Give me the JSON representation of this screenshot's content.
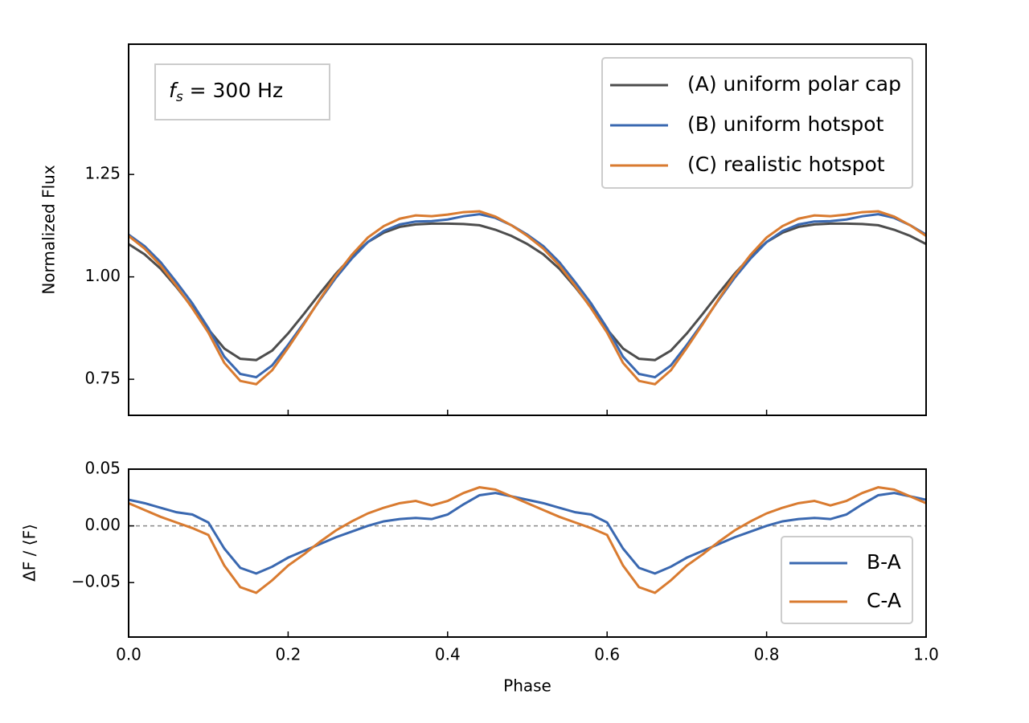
{
  "chart_data": [
    {
      "type": "line",
      "ylabel": "Normalized Flux",
      "annotation": {
        "symbol": "f",
        "subscript": "s",
        "text": " = 300 Hz"
      },
      "x": [
        0,
        0.02,
        0.04,
        0.06,
        0.08,
        0.1,
        0.12,
        0.14,
        0.16,
        0.18,
        0.2,
        0.22,
        0.24,
        0.26,
        0.28,
        0.3,
        0.32,
        0.34,
        0.36,
        0.38,
        0.4,
        0.42,
        0.44,
        0.46,
        0.48,
        0.5,
        0.52,
        0.54,
        0.56,
        0.58,
        0.6,
        0.62,
        0.64,
        0.66,
        0.68,
        0.7,
        0.72,
        0.74,
        0.76,
        0.78,
        0.8,
        0.82,
        0.84,
        0.86,
        0.88,
        0.9,
        0.92,
        0.94,
        0.96,
        0.98,
        1.0
      ],
      "xlim": [
        0,
        1
      ],
      "ylim": [
        0.662,
        1.568
      ],
      "yticks": [
        0.75,
        {
          "value": 1.0,
          "label": "1.00"
        },
        1.25
      ],
      "legend": "upper right",
      "series": [
        {
          "name": "(A) uniform polar cap",
          "color": "#4d4d4d",
          "values": [
            1.08,
            1.055,
            1.02,
            0.975,
            0.925,
            0.872,
            0.825,
            0.8,
            0.797,
            0.82,
            0.862,
            0.91,
            0.96,
            1.008,
            1.05,
            1.085,
            1.108,
            1.122,
            1.128,
            1.13,
            1.13,
            1.129,
            1.126,
            1.115,
            1.1,
            1.08,
            1.055,
            1.02,
            0.975,
            0.925,
            0.872,
            0.825,
            0.8,
            0.797,
            0.82,
            0.862,
            0.91,
            0.96,
            1.008,
            1.05,
            1.085,
            1.108,
            1.122,
            1.128,
            1.13,
            1.13,
            1.129,
            1.126,
            1.115,
            1.1,
            1.08
          ]
        },
        {
          "name": "(B) uniform hotspot",
          "color": "#3a68b0",
          "values": [
            1.103,
            1.075,
            1.036,
            0.987,
            0.935,
            0.875,
            0.805,
            0.763,
            0.755,
            0.784,
            0.834,
            0.888,
            0.944,
            0.998,
            1.045,
            1.085,
            1.112,
            1.128,
            1.135,
            1.136,
            1.14,
            1.148,
            1.153,
            1.144,
            1.126,
            1.103,
            1.075,
            1.036,
            0.987,
            0.935,
            0.875,
            0.805,
            0.763,
            0.755,
            0.784,
            0.834,
            0.888,
            0.944,
            0.998,
            1.045,
            1.085,
            1.112,
            1.128,
            1.135,
            1.136,
            1.14,
            1.148,
            1.153,
            1.144,
            1.126,
            1.103
          ]
        },
        {
          "name": "(C) realistic hotspot",
          "color": "#d97b30",
          "values": [
            1.1,
            1.069,
            1.028,
            0.978,
            0.923,
            0.864,
            0.79,
            0.746,
            0.738,
            0.772,
            0.827,
            0.885,
            0.946,
            1.004,
            1.054,
            1.096,
            1.124,
            1.142,
            1.15,
            1.148,
            1.152,
            1.158,
            1.16,
            1.147,
            1.126,
            1.1,
            1.069,
            1.028,
            0.978,
            0.923,
            0.864,
            0.79,
            0.746,
            0.738,
            0.772,
            0.827,
            0.885,
            0.946,
            1.004,
            1.054,
            1.096,
            1.124,
            1.142,
            1.15,
            1.148,
            1.152,
            1.158,
            1.16,
            1.147,
            1.126,
            1.1
          ]
        }
      ]
    },
    {
      "type": "line",
      "xlabel": "Phase",
      "ylabel": "ΔF / ⟨F⟩",
      "x": [
        0,
        0.02,
        0.04,
        0.06,
        0.08,
        0.1,
        0.12,
        0.14,
        0.16,
        0.18,
        0.2,
        0.22,
        0.24,
        0.26,
        0.28,
        0.3,
        0.32,
        0.34,
        0.36,
        0.38,
        0.4,
        0.42,
        0.44,
        0.46,
        0.48,
        0.5,
        0.52,
        0.54,
        0.56,
        0.58,
        0.6,
        0.62,
        0.64,
        0.66,
        0.68,
        0.7,
        0.72,
        0.74,
        0.76,
        0.78,
        0.8,
        0.82,
        0.84,
        0.86,
        0.88,
        0.9,
        0.92,
        0.94,
        0.96,
        0.98,
        1.0
      ],
      "xlim": [
        0,
        1
      ],
      "xticks": [
        {
          "value": 0,
          "label": "0.0"
        },
        0.2,
        0.4,
        0.6,
        0.8,
        {
          "value": 1,
          "label": "1.0"
        }
      ],
      "ylim": [
        -0.098,
        0.05
      ],
      "yticks": [
        {
          "value": -0.05,
          "label": "−0.05"
        },
        {
          "value": 0,
          "label": "0.00"
        },
        0.05
      ],
      "legend": "lower right",
      "series": [
        {
          "name": "B-A",
          "color": "#3a68b0",
          "values": [
            0.023,
            0.02,
            0.016,
            0.012,
            0.01,
            0.003,
            -0.02,
            -0.037,
            -0.042,
            -0.036,
            -0.028,
            -0.022,
            -0.016,
            -0.01,
            -0.005,
            0.0,
            0.004,
            0.006,
            0.007,
            0.006,
            0.01,
            0.019,
            0.027,
            0.029,
            0.026,
            0.023,
            0.02,
            0.016,
            0.012,
            0.01,
            0.003,
            -0.02,
            -0.037,
            -0.042,
            -0.036,
            -0.028,
            -0.022,
            -0.016,
            -0.01,
            -0.005,
            0.0,
            0.004,
            0.006,
            0.007,
            0.006,
            0.01,
            0.019,
            0.027,
            0.029,
            0.026,
            0.023
          ]
        },
        {
          "name": "C-A",
          "color": "#d97b30",
          "values": [
            0.02,
            0.014,
            0.008,
            0.003,
            -0.002,
            -0.008,
            -0.035,
            -0.054,
            -0.059,
            -0.048,
            -0.035,
            -0.025,
            -0.014,
            -0.004,
            0.004,
            0.011,
            0.016,
            0.02,
            0.022,
            0.018,
            0.022,
            0.029,
            0.034,
            0.032,
            0.026,
            0.02,
            0.014,
            0.008,
            0.003,
            -0.002,
            -0.008,
            -0.035,
            -0.054,
            -0.059,
            -0.048,
            -0.035,
            -0.025,
            -0.014,
            -0.004,
            0.004,
            0.011,
            0.016,
            0.02,
            0.022,
            0.018,
            0.022,
            0.029,
            0.034,
            0.032,
            0.026,
            0.02
          ]
        }
      ]
    }
  ]
}
